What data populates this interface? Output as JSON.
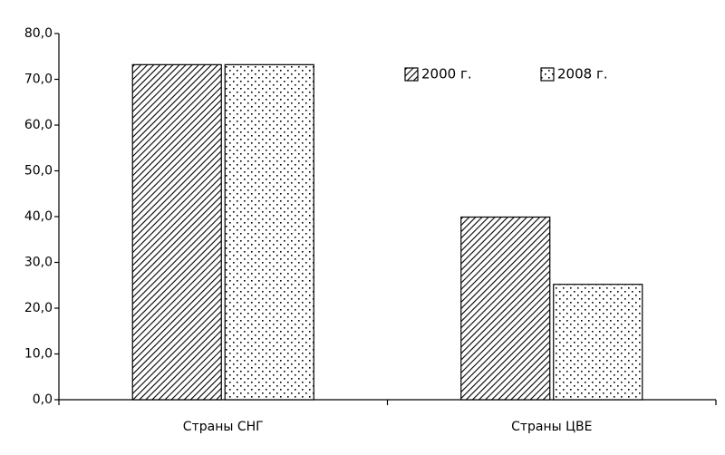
{
  "chart_data": {
    "type": "bar",
    "categories": [
      "Страны СНГ",
      "Страны ЦВЕ"
    ],
    "series": [
      {
        "name": "2000 г.",
        "color": "#000000",
        "pattern": "hatch",
        "values": [
          73.2,
          39.9
        ]
      },
      {
        "name": "2008 г.",
        "color": "#000000",
        "pattern": "dots",
        "values": [
          73.2,
          25.2
        ]
      }
    ],
    "ylim": [
      0,
      80
    ],
    "yticks": [
      {
        "value": 0,
        "label": "0,0"
      },
      {
        "value": 10,
        "label": "10,0"
      },
      {
        "value": 20,
        "label": "20,0"
      },
      {
        "value": 30,
        "label": "30,0"
      },
      {
        "value": 40,
        "label": "40,0"
      },
      {
        "value": 50,
        "label": "50,0"
      },
      {
        "value": 60,
        "label": "60,0"
      },
      {
        "value": 70,
        "label": "70,0"
      },
      {
        "value": 80,
        "label": "80,0"
      }
    ],
    "grid": false,
    "legend": "top-right"
  }
}
